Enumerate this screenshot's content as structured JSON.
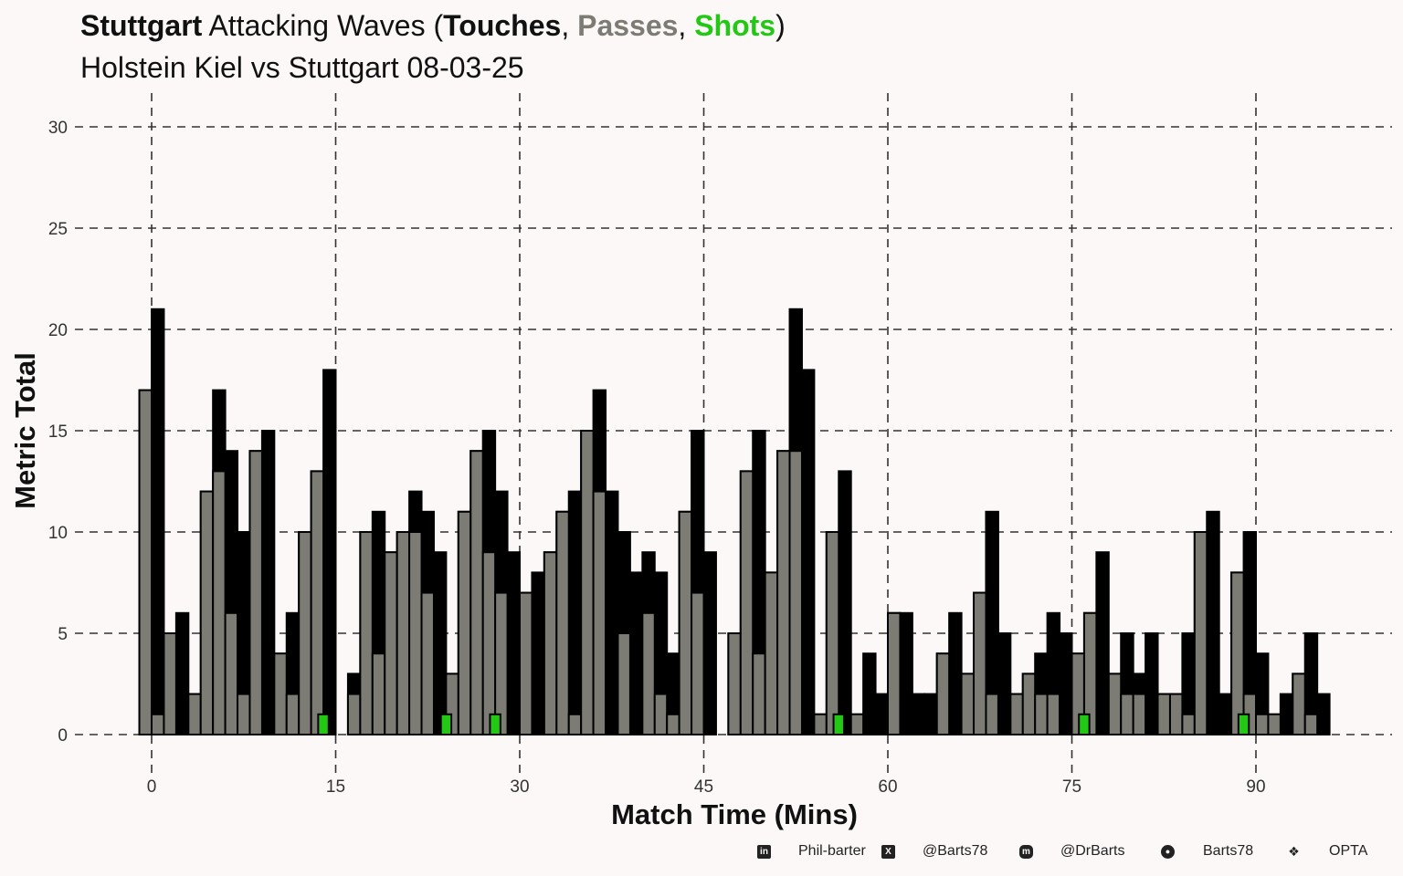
{
  "title": {
    "team": "Stuttgart",
    "middle": " Attacking Waves (",
    "touches": "Touches",
    "sep1": ", ",
    "passes": "Passes",
    "sep2": ", ",
    "shots": "Shots",
    "close": ")"
  },
  "subtitle": "Holstein Kiel vs Stuttgart 08-03-25",
  "colors": {
    "background": "#fcf8f8",
    "touches": "#000000",
    "passes": "#7c7c74",
    "shots": "#22c814",
    "grid": "#333333"
  },
  "footer": {
    "linkedin": "Phil-barter",
    "x": "@Barts78",
    "mastodon": "@DrBarts",
    "github": "Barts78",
    "data": "OPTA"
  },
  "chart_data": {
    "type": "bar",
    "title": "Stuttgart Attacking Waves (Touches, Passes, Shots)",
    "subtitle": "Holstein Kiel vs Stuttgart 08-03-25",
    "xlabel": "Match Time (Mins)",
    "ylabel": "Metric Total",
    "xlim": [
      -3.5,
      100.5
    ],
    "ylim": [
      -1.5,
      30.5
    ],
    "xticks": [
      0,
      15,
      30,
      45,
      60,
      75,
      90
    ],
    "yticks": [
      0,
      5,
      10,
      15,
      20,
      25,
      30
    ],
    "grid": true,
    "legend": "title",
    "series": [
      {
        "name": "Touches",
        "x": [
          -0.5,
          0.5,
          1.5,
          2.5,
          3.5,
          4.5,
          5.5,
          6.5,
          7.5,
          8.5,
          9.5,
          10.5,
          11.5,
          12.5,
          13.5,
          14.5,
          15.5,
          16.5,
          17.5,
          18.5,
          19.5,
          20.5,
          21.5,
          22.5,
          23.5,
          24.5,
          25.5,
          26.5,
          27.5,
          28.5,
          29.5,
          30.5,
          31.5,
          32.5,
          33.5,
          34.5,
          35.5,
          36.5,
          37.5,
          38.5,
          39.5,
          40.5,
          41.5,
          42.5,
          43.5,
          44.5,
          45.5,
          46.5,
          47.5,
          48.5,
          49.5,
          50.5,
          51.5,
          52.5,
          53.5,
          54.5,
          55.5,
          56.5,
          57.5,
          58.5,
          59.5,
          60.5,
          61.5,
          62.5,
          63.5,
          64.5,
          65.5,
          66.5,
          67.5,
          68.5,
          69.5,
          70.5,
          71.5,
          72.5,
          73.5,
          74.5,
          75.5,
          76.5,
          77.5,
          78.5,
          79.5,
          80.5,
          81.5,
          82.5,
          83.5,
          84.5,
          85.5,
          86.5,
          87.5,
          88.5,
          89.5,
          90.5,
          91.5,
          92.5,
          93.5,
          94.5,
          95.5
        ],
        "values": [
          17,
          21,
          5,
          6,
          2,
          12,
          17,
          14,
          10,
          14,
          15,
          4,
          6,
          10,
          13,
          18,
          0,
          3,
          10,
          11,
          9,
          10,
          12,
          11,
          9,
          3,
          11,
          14,
          15,
          12,
          9,
          7,
          8,
          9,
          11,
          12,
          15,
          17,
          12,
          10,
          8,
          9,
          8,
          4,
          11,
          15,
          9,
          0,
          5,
          13,
          15,
          8,
          14,
          21,
          18,
          1,
          10,
          13,
          1,
          4,
          2,
          6,
          6,
          2,
          2,
          4,
          6,
          3,
          7,
          11,
          5,
          2,
          3,
          4,
          6,
          5,
          4,
          6,
          9,
          3,
          5,
          3,
          5,
          2,
          2,
          5,
          10,
          11,
          2,
          8,
          10,
          4,
          1,
          2,
          3,
          5,
          2
        ]
      },
      {
        "name": "Passes",
        "x": [
          -0.5,
          0.5,
          1.5,
          2.5,
          3.5,
          4.5,
          5.5,
          6.5,
          7.5,
          8.5,
          9.5,
          10.5,
          11.5,
          12.5,
          13.5,
          14.5,
          15.5,
          16.5,
          17.5,
          18.5,
          19.5,
          20.5,
          21.5,
          22.5,
          23.5,
          24.5,
          25.5,
          26.5,
          27.5,
          28.5,
          29.5,
          30.5,
          31.5,
          32.5,
          33.5,
          34.5,
          35.5,
          36.5,
          37.5,
          38.5,
          39.5,
          40.5,
          41.5,
          42.5,
          43.5,
          44.5,
          45.5,
          46.5,
          47.5,
          48.5,
          49.5,
          50.5,
          51.5,
          52.5,
          53.5,
          54.5,
          55.5,
          56.5,
          57.5,
          58.5,
          59.5,
          60.5,
          61.5,
          62.5,
          63.5,
          64.5,
          65.5,
          66.5,
          67.5,
          68.5,
          69.5,
          70.5,
          71.5,
          72.5,
          73.5,
          74.5,
          75.5,
          76.5,
          77.5,
          78.5,
          79.5,
          80.5,
          81.5,
          82.5,
          83.5,
          84.5,
          85.5,
          86.5,
          87.5,
          88.5,
          89.5,
          90.5,
          91.5,
          92.5,
          93.5,
          94.5,
          95.5
        ],
        "values": [
          17,
          1,
          5,
          0,
          2,
          12,
          13,
          6,
          2,
          14,
          0,
          4,
          2,
          10,
          13,
          0,
          0,
          2,
          10,
          4,
          9,
          10,
          10,
          7,
          0,
          3,
          11,
          14,
          9,
          7,
          0,
          7,
          0,
          9,
          11,
          1,
          15,
          12,
          0,
          5,
          0,
          6,
          2,
          1,
          11,
          7,
          0,
          0,
          5,
          13,
          4,
          8,
          14,
          14,
          0,
          1,
          10,
          0,
          1,
          0,
          0,
          6,
          0,
          0,
          0,
          4,
          0,
          3,
          7,
          2,
          0,
          2,
          3,
          2,
          2,
          0,
          4,
          6,
          0,
          3,
          2,
          2,
          0,
          2,
          2,
          1,
          10,
          0,
          0,
          8,
          2,
          1,
          1,
          0,
          3,
          1,
          0
        ]
      },
      {
        "name": "Shots",
        "x": [
          14,
          24,
          28,
          56,
          76,
          89
        ],
        "values": [
          1,
          1,
          1,
          1,
          1,
          1
        ]
      }
    ]
  }
}
